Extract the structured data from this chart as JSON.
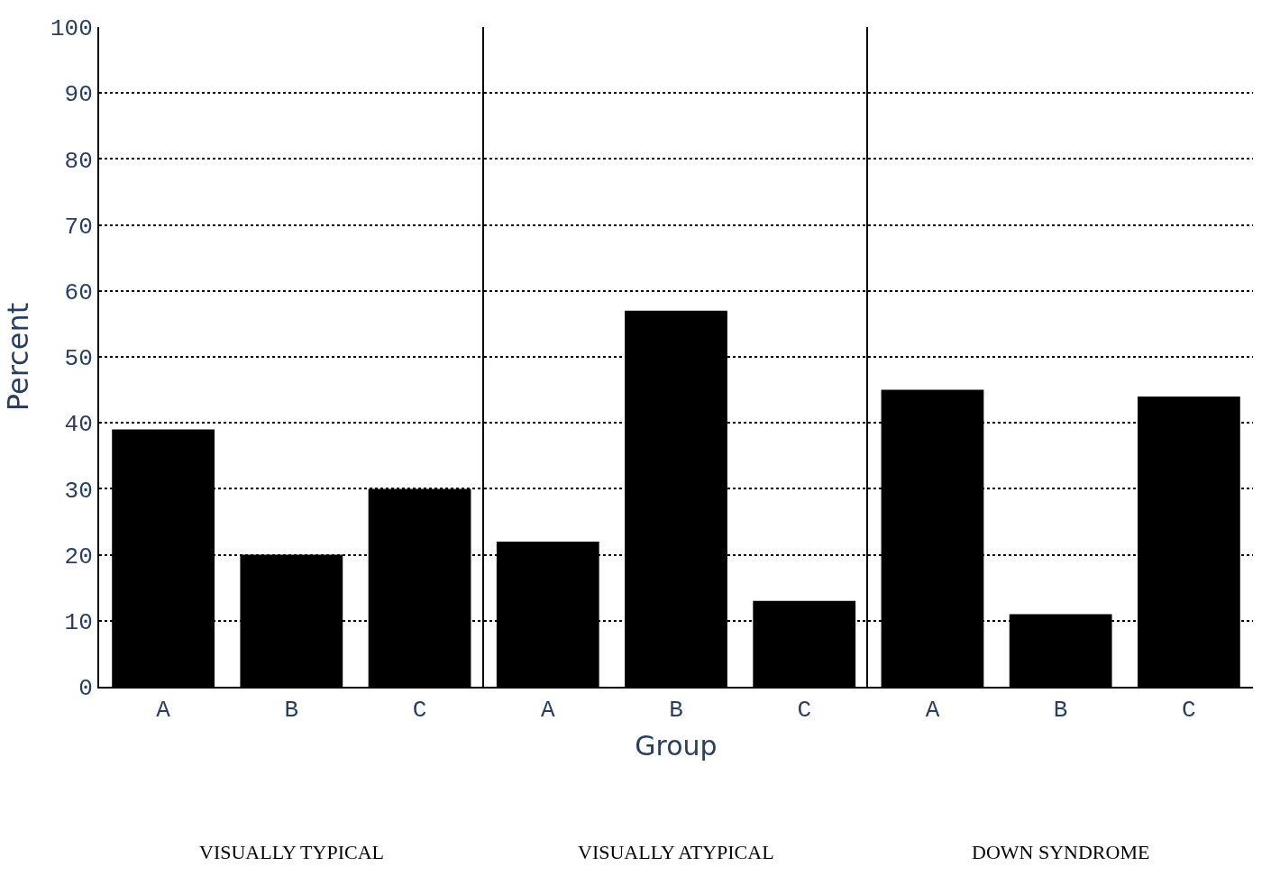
{
  "chart_data": [
    {
      "type": "bar",
      "categories": [
        "A",
        "B",
        "C"
      ],
      "values": [
        39,
        20,
        30
      ],
      "color": "#000000",
      "ylabel": "Percent",
      "ylim": [
        0,
        100
      ],
      "yticks": [
        0,
        10,
        20,
        30,
        40,
        50,
        60,
        70,
        80,
        90,
        100
      ],
      "grid": "y",
      "annotations": [
        "VISUALLY TYPICAL"
      ]
    },
    {
      "type": "bar",
      "categories": [
        "A",
        "B",
        "C"
      ],
      "values": [
        22,
        57,
        13
      ],
      "color": "#000000",
      "xlabel": "Group",
      "ylim": [
        0,
        100
      ],
      "yticks": [
        0,
        10,
        20,
        30,
        40,
        50,
        60,
        70,
        80,
        90,
        100
      ],
      "grid": "y",
      "tick_labels": "x",
      "annotations": [
        "VISUALLY ATYPICAL"
      ]
    },
    {
      "type": "bar",
      "categories": [
        "A",
        "B",
        "C"
      ],
      "values": [
        45,
        11,
        44
      ],
      "color": "#000000",
      "ylim": [
        0,
        100
      ],
      "yticks": [
        0,
        10,
        20,
        30,
        40,
        50,
        60,
        70,
        80,
        90,
        100
      ],
      "grid": "y",
      "tick_labels": "x",
      "annotations": [
        "DOWN SYNDROME"
      ]
    }
  ]
}
